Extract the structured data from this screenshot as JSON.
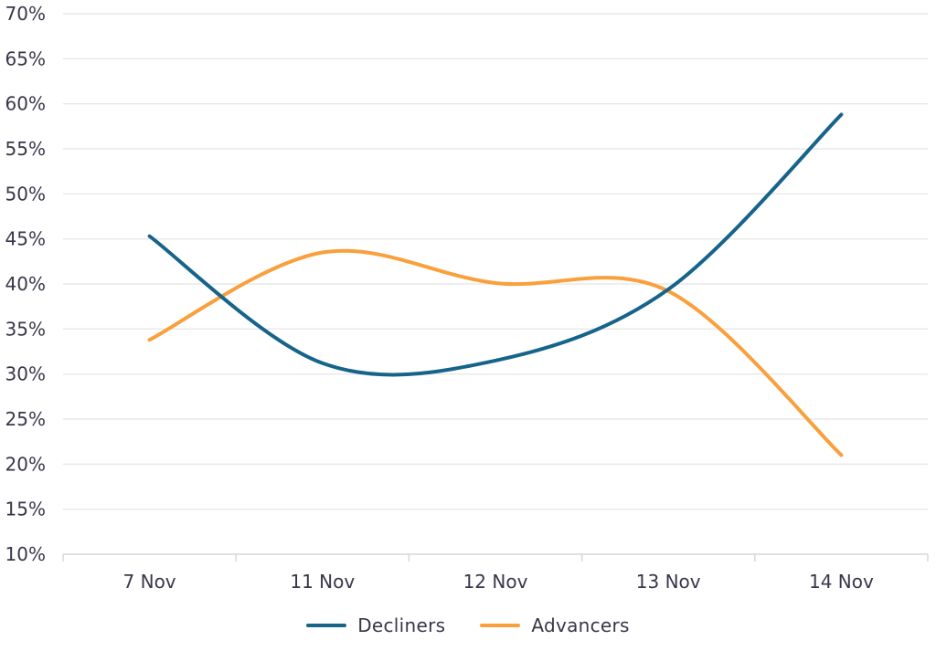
{
  "chart_data": {
    "type": "line",
    "title": "",
    "xlabel": "",
    "ylabel": "",
    "categories": [
      "7 Nov",
      "11 Nov",
      "12 Nov",
      "13 Nov",
      "14 Nov"
    ],
    "series": [
      {
        "name": "Decliners",
        "color": "#17648a",
        "values": [
          45.3,
          31.2,
          31.5,
          39.4,
          58.8
        ]
      },
      {
        "name": "Advancers",
        "color": "#f9a03c",
        "values": [
          33.8,
          43.5,
          40.1,
          39.2,
          21.0
        ]
      }
    ],
    "ylim": [
      10,
      70
    ],
    "ytick_step": 5,
    "ytick_suffix": "%",
    "grid": "horizontal-only",
    "legend_position": "bottom",
    "curve": "smooth-spline"
  },
  "colors": {
    "background": "#ffffff",
    "gridline": "#e8e8e8",
    "axis_line": "#d6d6d6",
    "label_text": "#37374a"
  }
}
